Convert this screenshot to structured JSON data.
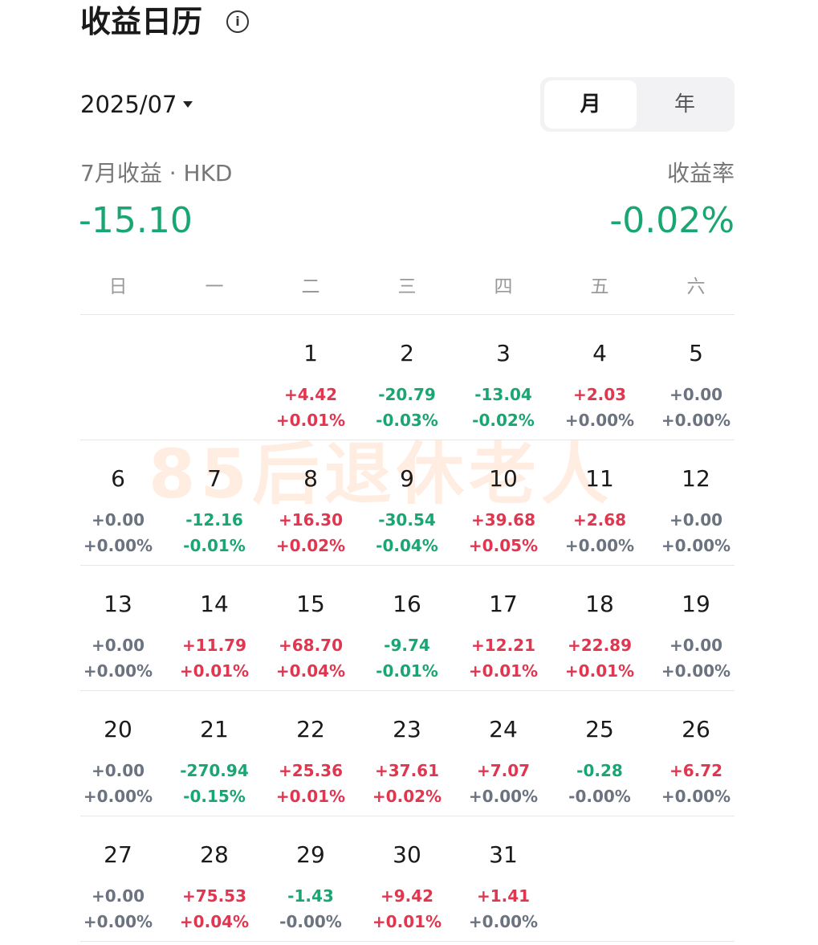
{
  "header": {
    "title": "收益日历",
    "info_icon": "i"
  },
  "selector": {
    "month": "2025/07",
    "tabs": [
      "月",
      "年"
    ]
  },
  "summary": {
    "label": "7月收益 · HKD",
    "value": "-15.10",
    "rate_label": "收益率",
    "rate": "-0.02%"
  },
  "weekdays": [
    "日",
    "一",
    "二",
    "三",
    "四",
    "五",
    "六"
  ],
  "watermark": "85后退休老人",
  "days": [
    {
      "day": "1",
      "amount": "+4.42",
      "rate": "+0.01%"
    },
    {
      "day": "2",
      "amount": "-20.79",
      "rate": "-0.03%"
    },
    {
      "day": "3",
      "amount": "-13.04",
      "rate": "-0.02%"
    },
    {
      "day": "4",
      "amount": "+2.03",
      "rate": "+0.00%"
    },
    {
      "day": "5",
      "amount": "+0.00",
      "rate": "+0.00%"
    },
    {
      "day": "6",
      "amount": "+0.00",
      "rate": "+0.00%"
    },
    {
      "day": "7",
      "amount": "-12.16",
      "rate": "-0.01%"
    },
    {
      "day": "8",
      "amount": "+16.30",
      "rate": "+0.02%"
    },
    {
      "day": "9",
      "amount": "-30.54",
      "rate": "-0.04%"
    },
    {
      "day": "10",
      "amount": "+39.68",
      "rate": "+0.05%"
    },
    {
      "day": "11",
      "amount": "+2.68",
      "rate": "+0.00%"
    },
    {
      "day": "12",
      "amount": "+0.00",
      "rate": "+0.00%"
    },
    {
      "day": "13",
      "amount": "+0.00",
      "rate": "+0.00%"
    },
    {
      "day": "14",
      "amount": "+11.79",
      "rate": "+0.01%"
    },
    {
      "day": "15",
      "amount": "+68.70",
      "rate": "+0.04%"
    },
    {
      "day": "16",
      "amount": "-9.74",
      "rate": "-0.01%"
    },
    {
      "day": "17",
      "amount": "+12.21",
      "rate": "+0.01%"
    },
    {
      "day": "18",
      "amount": "+22.89",
      "rate": "+0.01%"
    },
    {
      "day": "19",
      "amount": "+0.00",
      "rate": "+0.00%"
    },
    {
      "day": "20",
      "amount": "+0.00",
      "rate": "+0.00%"
    },
    {
      "day": "21",
      "amount": "-270.94",
      "rate": "-0.15%"
    },
    {
      "day": "22",
      "amount": "+25.36",
      "rate": "+0.01%"
    },
    {
      "day": "23",
      "amount": "+37.61",
      "rate": "+0.02%"
    },
    {
      "day": "24",
      "amount": "+7.07",
      "rate": "+0.00%"
    },
    {
      "day": "25",
      "amount": "-0.28",
      "rate": "-0.00%"
    },
    {
      "day": "26",
      "amount": "+6.72",
      "rate": "+0.00%"
    },
    {
      "day": "27",
      "amount": "+0.00",
      "rate": "+0.00%"
    },
    {
      "day": "28",
      "amount": "+75.53",
      "rate": "+0.04%"
    },
    {
      "day": "29",
      "amount": "-1.43",
      "rate": "-0.00%"
    },
    {
      "day": "30",
      "amount": "+9.42",
      "rate": "+0.01%"
    },
    {
      "day": "31",
      "amount": "+1.41",
      "rate": "+0.00%"
    }
  ]
}
